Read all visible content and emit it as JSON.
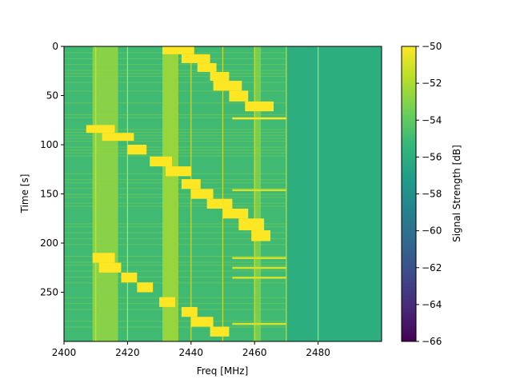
{
  "chart_data": {
    "type": "heatmap",
    "title": "",
    "xlabel": "Freq [MHz]",
    "ylabel": "Time [s]",
    "xlim": [
      2400,
      2500
    ],
    "ylim": [
      300,
      0
    ],
    "x_ticks": [
      2400,
      2420,
      2440,
      2460,
      2480
    ],
    "y_ticks": [
      0,
      50,
      100,
      150,
      200,
      250
    ],
    "colorbar": {
      "label": "Signal Strength [dB]",
      "range": [
        -66,
        -50
      ],
      "ticks": [
        -50,
        -52,
        -54,
        -56,
        -58,
        -60,
        -62,
        -64,
        -66
      ],
      "colormap": "viridis"
    },
    "background_level_db": -56,
    "features": {
      "vertical_lines_mhz": [
        2410,
        2420,
        2440,
        2450,
        2460,
        2470,
        2480
      ],
      "persistent_bands": [
        {
          "start_mhz": 2409,
          "end_mhz": 2417,
          "level_db": -52.5
        },
        {
          "start_mhz": 2431,
          "end_mhz": 2436,
          "level_db": -52
        },
        {
          "start_mhz": 2460,
          "end_mhz": 2462,
          "level_db": -53
        }
      ],
      "hop_bursts": [
        {
          "t_start": 0,
          "t_end": 8,
          "f_start": 2431,
          "f_end": 2441,
          "level_db": -50
        },
        {
          "t_start": 8,
          "t_end": 17,
          "f_start": 2437,
          "f_end": 2446,
          "level_db": -50
        },
        {
          "t_start": 17,
          "t_end": 26,
          "f_start": 2442,
          "f_end": 2448,
          "level_db": -50
        },
        {
          "t_start": 26,
          "t_end": 35,
          "f_start": 2446,
          "f_end": 2452,
          "level_db": -50
        },
        {
          "t_start": 35,
          "t_end": 45,
          "f_start": 2447,
          "f_end": 2456,
          "level_db": -50
        },
        {
          "t_start": 45,
          "t_end": 56,
          "f_start": 2452,
          "f_end": 2458,
          "level_db": -50
        },
        {
          "t_start": 56,
          "t_end": 66,
          "f_start": 2457,
          "f_end": 2466,
          "level_db": -50
        },
        {
          "t_start": 80,
          "t_end": 88,
          "f_start": 2407,
          "f_end": 2416,
          "level_db": -50
        },
        {
          "t_start": 88,
          "t_end": 96,
          "f_start": 2412,
          "f_end": 2422,
          "level_db": -50
        },
        {
          "t_start": 100,
          "t_end": 110,
          "f_start": 2420,
          "f_end": 2426,
          "level_db": -50
        },
        {
          "t_start": 112,
          "t_end": 122,
          "f_start": 2427,
          "f_end": 2434,
          "level_db": -50
        },
        {
          "t_start": 122,
          "t_end": 132,
          "f_start": 2432,
          "f_end": 2440,
          "level_db": -50
        },
        {
          "t_start": 135,
          "t_end": 145,
          "f_start": 2437,
          "f_end": 2443,
          "level_db": -50
        },
        {
          "t_start": 145,
          "t_end": 155,
          "f_start": 2440,
          "f_end": 2447,
          "level_db": -50
        },
        {
          "t_start": 155,
          "t_end": 165,
          "f_start": 2445,
          "f_end": 2453,
          "level_db": -50
        },
        {
          "t_start": 165,
          "t_end": 175,
          "f_start": 2450,
          "f_end": 2458,
          "level_db": -50
        },
        {
          "t_start": 175,
          "t_end": 187,
          "f_start": 2455,
          "f_end": 2463,
          "level_db": -50
        },
        {
          "t_start": 187,
          "t_end": 198,
          "f_start": 2459,
          "f_end": 2465,
          "level_db": -50
        },
        {
          "t_start": 210,
          "t_end": 220,
          "f_start": 2409,
          "f_end": 2416,
          "level_db": -50
        },
        {
          "t_start": 220,
          "t_end": 230,
          "f_start": 2411,
          "f_end": 2418,
          "level_db": -50
        },
        {
          "t_start": 230,
          "t_end": 240,
          "f_start": 2418,
          "f_end": 2423,
          "level_db": -50
        },
        {
          "t_start": 240,
          "t_end": 250,
          "f_start": 2423,
          "f_end": 2428,
          "level_db": -50
        },
        {
          "t_start": 255,
          "t_end": 265,
          "f_start": 2430,
          "f_end": 2435,
          "level_db": -50
        },
        {
          "t_start": 265,
          "t_end": 275,
          "f_start": 2437,
          "f_end": 2442,
          "level_db": -50
        },
        {
          "t_start": 275,
          "t_end": 285,
          "f_start": 2440,
          "f_end": 2447,
          "level_db": -50
        },
        {
          "t_start": 285,
          "t_end": 295,
          "f_start": 2446,
          "f_end": 2452,
          "level_db": -50
        }
      ],
      "burst_streaks": [
        {
          "t": 73,
          "f_start": 2453,
          "f_end": 2470,
          "level_db": -50
        },
        {
          "t": 146,
          "f_start": 2453,
          "f_end": 2470,
          "level_db": -51
        },
        {
          "t": 215,
          "f_start": 2453,
          "f_end": 2470,
          "level_db": -51
        },
        {
          "t": 225,
          "f_start": 2453,
          "f_end": 2470,
          "level_db": -51
        },
        {
          "t": 235,
          "f_start": 2453,
          "f_end": 2470,
          "level_db": -51
        },
        {
          "t": 282,
          "f_start": 2453,
          "f_end": 2470,
          "level_db": -51
        }
      ]
    }
  }
}
